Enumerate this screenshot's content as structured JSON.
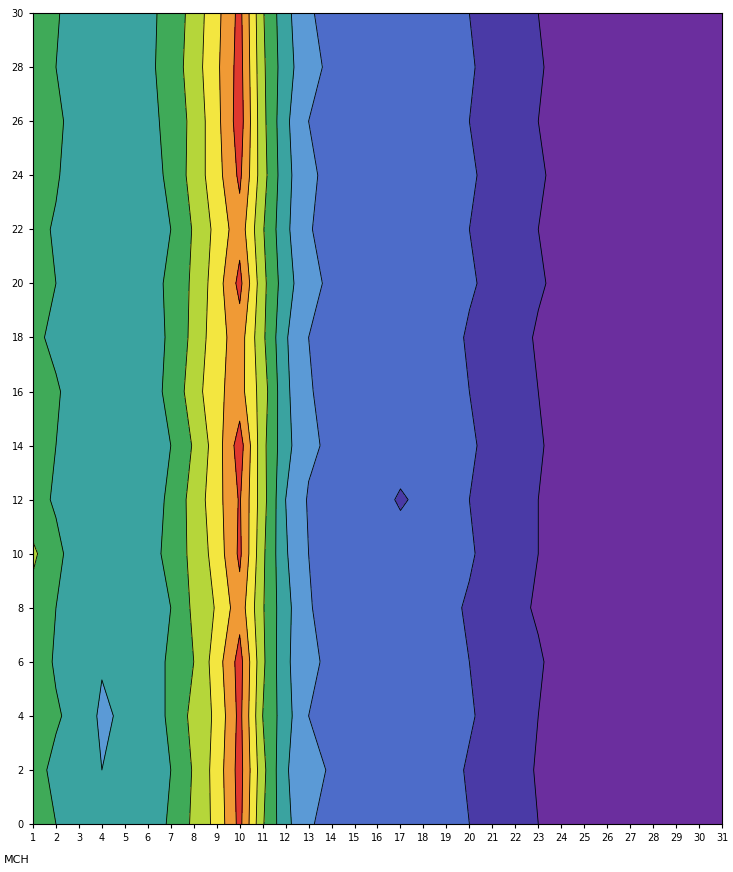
{
  "chart_data": {
    "type": "contour",
    "annotations": [
      "MCH"
    ],
    "x": [
      1,
      2,
      3,
      4,
      5,
      6,
      7,
      8,
      9,
      10,
      11,
      12,
      13,
      14,
      15,
      16,
      17,
      18,
      19,
      20,
      21,
      22,
      23,
      24,
      25,
      26,
      27,
      28,
      29,
      30,
      31
    ],
    "y": [
      0,
      2,
      4,
      6,
      8,
      10,
      12,
      14,
      16,
      18,
      20,
      22,
      24,
      26,
      28,
      30
    ],
    "cells": [
      [
        5.6,
        5.0,
        4.6,
        4.2,
        4.1,
        4.6,
        5.1,
        6.2,
        7.3,
        9.3,
        6.1,
        4.3,
        3.1,
        2.7,
        2.4,
        2.6,
        2.2,
        2.5,
        2.4,
        2.0,
        1.8,
        1.3,
        1.0,
        0.7,
        0.4,
        0.2,
        0.1,
        0.1,
        0.1,
        0.1,
        0.1
      ],
      [
        5.3,
        4.8,
        4.4,
        4.0,
        4.3,
        4.5,
        5.0,
        6.1,
        7.4,
        9.4,
        6.3,
        4.1,
        3.3,
        2.9,
        2.3,
        2.5,
        2.6,
        2.2,
        2.3,
        1.9,
        1.6,
        1.4,
        0.9,
        0.6,
        0.3,
        0.2,
        0.1,
        0.1,
        0.1,
        0.1,
        0.1
      ],
      [
        5.4,
        5.1,
        4.7,
        3.8,
        4.2,
        4.4,
        5.2,
        6.3,
        7.2,
        9.3,
        6.0,
        4.4,
        3.0,
        2.6,
        2.5,
        2.3,
        2.4,
        2.6,
        2.1,
        2.1,
        1.7,
        1.2,
        1.0,
        0.8,
        0.4,
        0.2,
        0.1,
        0.1,
        0.1,
        0.1,
        0.1
      ],
      [
        5.5,
        4.9,
        4.5,
        4.1,
        4.0,
        4.7,
        5.1,
        6.0,
        7.5,
        9.4,
        6.2,
        4.2,
        3.2,
        2.8,
        2.4,
        2.6,
        2.3,
        2.4,
        2.5,
        2.0,
        1.8,
        1.3,
        1.1,
        0.7,
        0.5,
        0.2,
        0.1,
        0.1,
        0.1,
        0.1,
        0.1
      ],
      [
        5.6,
        5.0,
        4.4,
        4.2,
        4.3,
        4.5,
        5.0,
        6.2,
        7.1,
        8.6,
        6.1,
        4.3,
        3.1,
        2.5,
        2.3,
        2.4,
        2.5,
        2.3,
        2.2,
        1.9,
        1.6,
        1.2,
        0.9,
        0.6,
        0.3,
        0.2,
        0.1,
        0.1,
        0.1,
        0.1,
        0.1
      ],
      [
        6.2,
        5.2,
        4.6,
        4.0,
        4.1,
        4.6,
        5.3,
        6.3,
        7.4,
        9.2,
        6.2,
        4.1,
        3.0,
        2.7,
        2.5,
        2.2,
        2.4,
        2.6,
        2.3,
        2.1,
        1.7,
        1.3,
        1.0,
        0.7,
        0.4,
        0.2,
        0.1,
        0.1,
        0.1,
        0.1,
        0.1
      ],
      [
        5.3,
        4.9,
        4.5,
        4.1,
        4.2,
        4.5,
        5.2,
        6.4,
        7.6,
        9.1,
        6.4,
        4.0,
        2.9,
        2.6,
        2.2,
        2.3,
        1.9,
        2.2,
        2.4,
        2.0,
        1.6,
        1.4,
        1.0,
        0.8,
        0.4,
        0.2,
        0.1,
        0.1,
        0.1,
        0.1,
        0.1
      ],
      [
        5.5,
        5.0,
        4.3,
        4.0,
        4.2,
        4.6,
        5.0,
        6.1,
        7.5,
        9.5,
        6.3,
        4.3,
        3.2,
        2.8,
        2.5,
        2.6,
        2.4,
        2.2,
        2.5,
        2.1,
        1.8,
        1.3,
        1.1,
        0.7,
        0.4,
        0.2,
        0.1,
        0.1,
        0.1,
        0.1,
        0.1
      ],
      [
        5.4,
        5.1,
        4.6,
        4.2,
        4.0,
        4.5,
        5.3,
        6.5,
        7.8,
        8.4,
        6.5,
        4.2,
        3.1,
        2.6,
        2.4,
        2.3,
        2.5,
        2.3,
        2.2,
        2.0,
        1.7,
        1.2,
        1.0,
        0.6,
        0.3,
        0.2,
        0.1,
        0.1,
        0.1,
        0.1,
        0.1
      ],
      [
        5.2,
        4.8,
        4.4,
        4.1,
        4.3,
        4.7,
        5.1,
        6.3,
        7.6,
        8.5,
        6.2,
        4.1,
        3.0,
        2.7,
        2.5,
        2.4,
        2.3,
        2.5,
        2.3,
        1.9,
        1.6,
        1.3,
        0.9,
        0.7,
        0.4,
        0.2,
        0.1,
        0.1,
        0.1,
        0.1,
        0.1
      ],
      [
        5.6,
        5.0,
        4.5,
        4.3,
        4.1,
        4.6,
        5.2,
        6.2,
        7.5,
        9.3,
        6.3,
        4.4,
        3.3,
        2.8,
        2.4,
        2.6,
        2.2,
        2.4,
        2.5,
        2.1,
        1.8,
        1.4,
        1.1,
        0.8,
        0.4,
        0.2,
        0.1,
        0.1,
        0.1,
        0.1,
        0.1
      ],
      [
        5.3,
        4.9,
        4.7,
        4.2,
        4.2,
        4.4,
        5.0,
        6.1,
        7.3,
        8.6,
        6.1,
        4.2,
        3.1,
        2.5,
        2.3,
        2.5,
        2.4,
        2.2,
        2.4,
        2.0,
        1.7,
        1.3,
        1.0,
        0.7,
        0.3,
        0.2,
        0.1,
        0.1,
        0.1,
        0.1,
        0.1
      ],
      [
        5.5,
        5.1,
        4.5,
        4.0,
        4.3,
        4.6,
        5.2,
        6.4,
        7.6,
        9.2,
        6.4,
        4.3,
        3.2,
        2.7,
        2.5,
        2.3,
        2.5,
        2.4,
        2.3,
        2.1,
        1.8,
        1.4,
        1.1,
        0.8,
        0.5,
        0.2,
        0.1,
        0.1,
        0.1,
        0.1,
        0.1
      ],
      [
        5.7,
        5.2,
        4.6,
        4.1,
        4.4,
        4.7,
        5.3,
        6.3,
        7.7,
        9.5,
        6.3,
        4.2,
        3.0,
        2.6,
        2.4,
        2.6,
        2.3,
        2.5,
        2.2,
        2.0,
        1.6,
        1.3,
        1.0,
        0.7,
        0.6,
        0.4,
        0.3,
        0.3,
        0.2,
        0.2,
        0.2
      ],
      [
        5.8,
        5.0,
        4.4,
        4.3,
        4.2,
        4.8,
        5.4,
        6.5,
        7.8,
        9.4,
        6.2,
        4.4,
        3.3,
        2.8,
        2.6,
        2.4,
        2.4,
        2.6,
        2.3,
        2.1,
        1.7,
        1.4,
        1.1,
        0.7,
        0.4,
        0.2,
        0.1,
        0.1,
        0.1,
        0.1,
        0.1
      ],
      [
        5.9,
        5.1,
        4.5,
        4.2,
        4.3,
        4.8,
        5.3,
        6.4,
        7.7,
        9.3,
        6.1,
        4.3,
        3.1,
        2.7,
        2.5,
        2.5,
        2.4,
        2.5,
        2.4,
        2.0,
        1.8,
        1.3,
        1.0,
        0.7,
        0.4,
        0.2,
        0.1,
        0.1,
        0.1,
        0.1,
        0.1
      ]
    ],
    "levels": [
      0,
      1,
      2,
      3,
      4,
      5,
      6,
      7,
      8,
      9,
      10
    ],
    "colors": [
      "#6b2e9e",
      "#4a3aa6",
      "#4d6cc9",
      "#5b9ad6",
      "#3aa3a0",
      "#3faa58",
      "#b5d63a",
      "#f3e640",
      "#f09a35",
      "#e0382e"
    ],
    "xlim": [
      1,
      31
    ],
    "ylim": [
      0,
      30
    ],
    "xticks": [
      1,
      2,
      3,
      4,
      5,
      6,
      7,
      8,
      9,
      10,
      11,
      12,
      13,
      14,
      15,
      16,
      17,
      18,
      19,
      20,
      21,
      22,
      23,
      24,
      25,
      26,
      27,
      28,
      29,
      30,
      31
    ],
    "yticks": [
      0,
      2,
      4,
      6,
      8,
      10,
      12,
      14,
      16,
      18,
      20,
      22,
      24,
      26,
      28,
      30
    ]
  }
}
